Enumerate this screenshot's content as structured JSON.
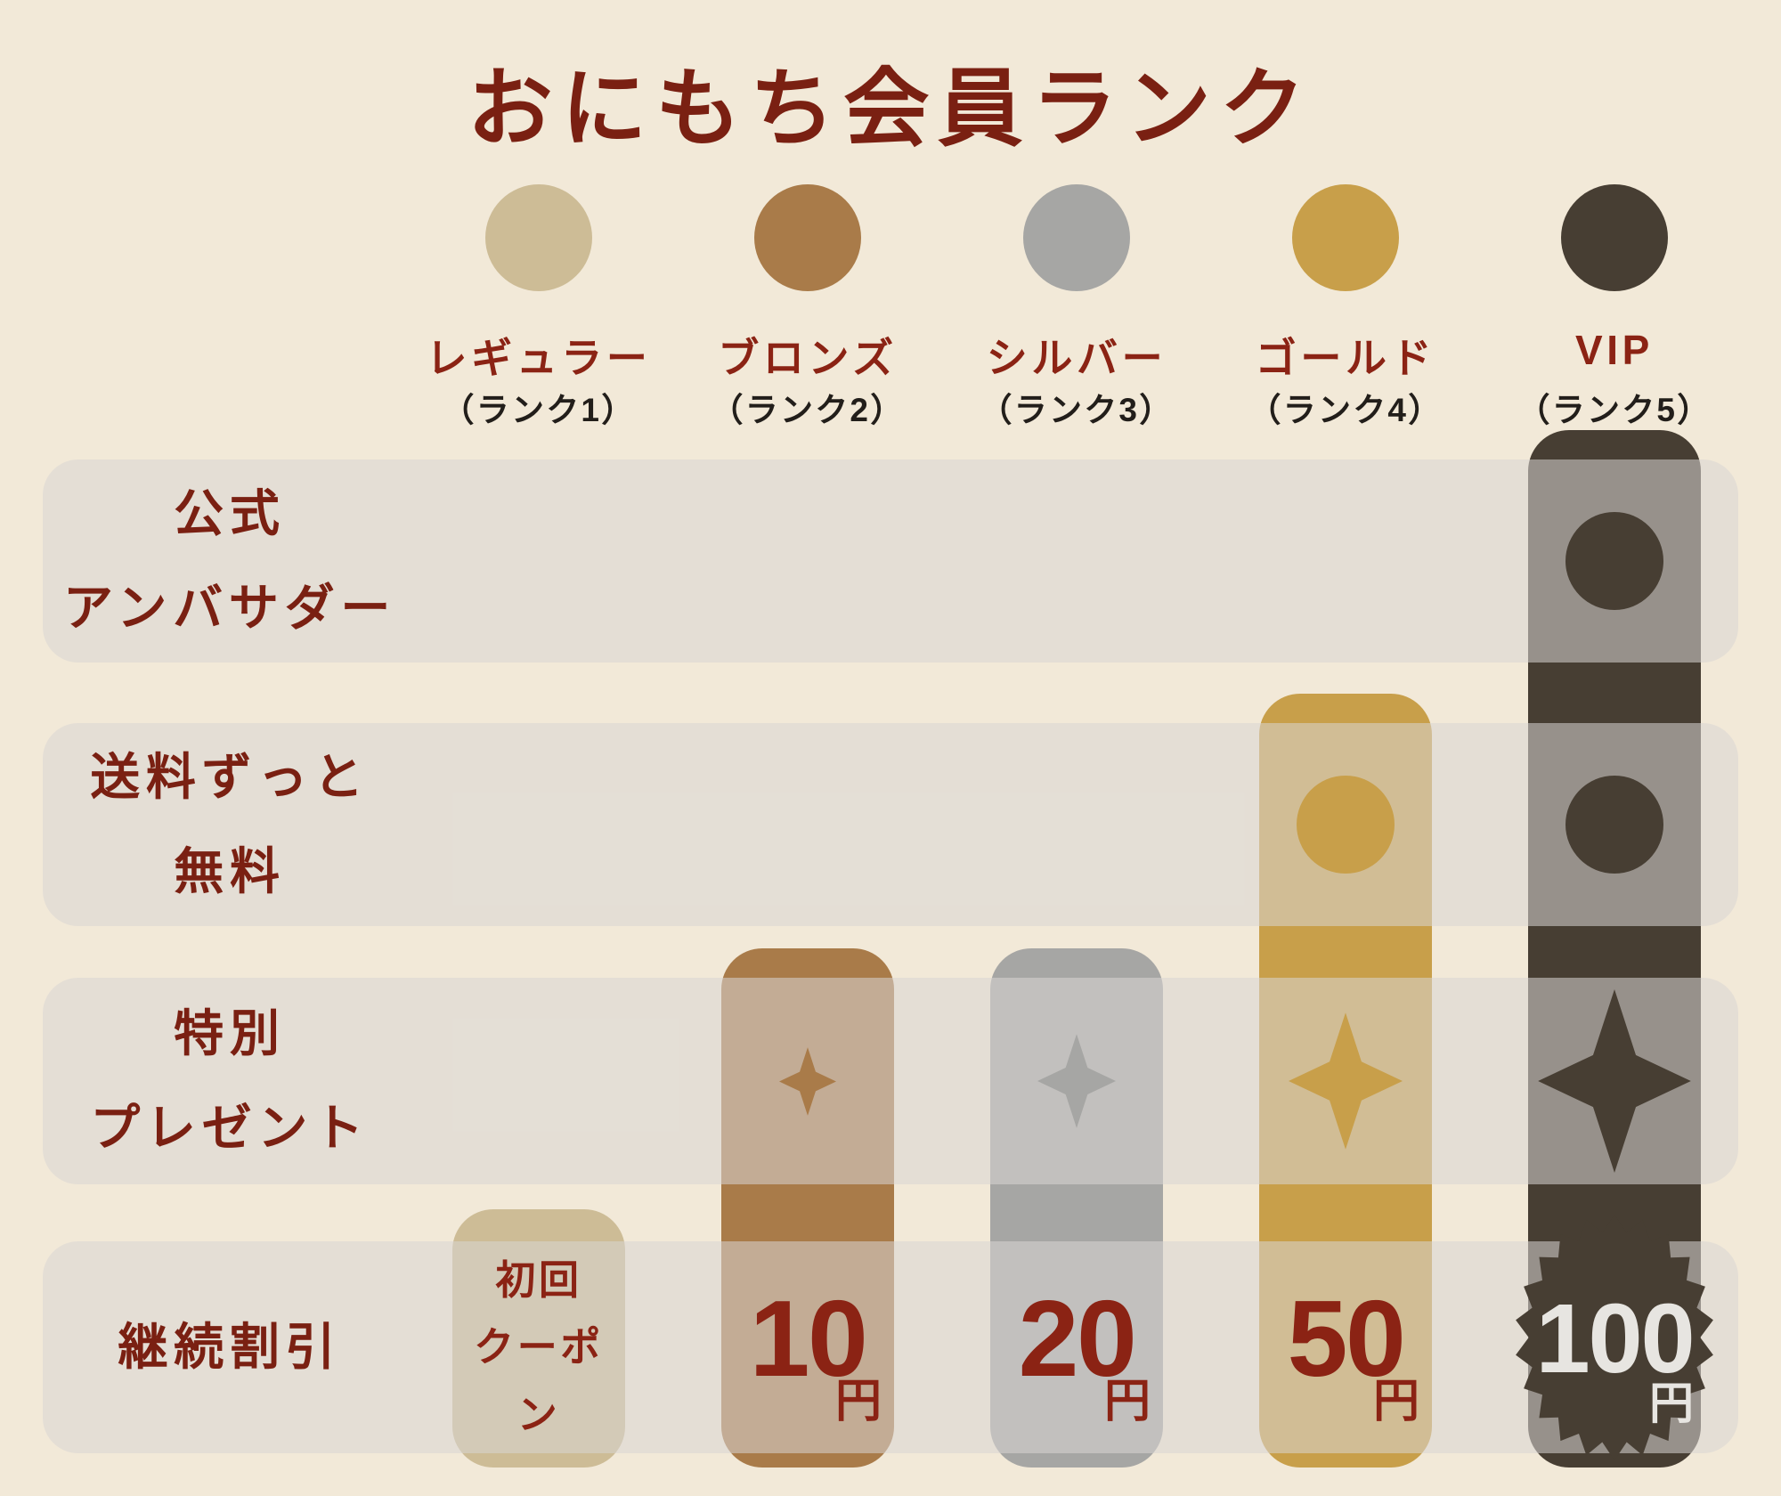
{
  "title": "おにもち会員ランク",
  "theme": {
    "background": "#f2e9d8",
    "band_overlay": "rgba(217,214,212,0.55)",
    "title_color": "#7a2012",
    "accent_text": "#8b2314",
    "note_text": "#221e1a",
    "light_text": "#e7e5e1"
  },
  "ranks": [
    {
      "name": "レギュラー",
      "note": "（ランク1）",
      "color": "#cdbc96",
      "discount": {
        "type": "text",
        "lines": [
          "初回",
          "クーポン"
        ]
      }
    },
    {
      "name": "ブロンズ",
      "note": "（ランク2）",
      "color": "#a97b49",
      "discount": {
        "type": "price",
        "amount": "10",
        "unit": "円"
      }
    },
    {
      "name": "シルバー",
      "note": "（ランク3）",
      "color": "#a6a6a4",
      "discount": {
        "type": "price",
        "amount": "20",
        "unit": "円"
      }
    },
    {
      "name": "ゴールド",
      "note": "（ランク4）",
      "color": "#c89f4a",
      "discount": {
        "type": "price",
        "amount": "50",
        "unit": "円"
      }
    },
    {
      "name": "VIP",
      "note": "（ランク5）",
      "color": "#473e33",
      "discount": {
        "type": "price",
        "amount": "100",
        "unit": "円"
      }
    }
  ],
  "rows": [
    {
      "label_lines": [
        "公式",
        "アンバサダー"
      ]
    },
    {
      "label_lines": [
        "送料ずっと",
        "無料"
      ]
    },
    {
      "label_lines": [
        "特別",
        "プレゼント"
      ]
    },
    {
      "label_lines": [
        "継続割引",
        ""
      ]
    }
  ],
  "benefit_matrix": {
    "ambassador": [
      false,
      false,
      false,
      false,
      true
    ],
    "free_shipping": [
      false,
      false,
      false,
      true,
      true
    ],
    "special_present": [
      false,
      true,
      true,
      true,
      true
    ],
    "loyalty_discount": [
      "初回クーポン",
      "10円",
      "20円",
      "50円",
      "100円"
    ]
  },
  "icons": {
    "rank_badge": "filled-circle-icon",
    "ambassador_marker": "filled-circle-icon",
    "free_shipping_marker": "filled-circle-icon",
    "special_present_marker": "four-point-sparkle-icon",
    "vip_discount_badge": "starburst-seal-icon"
  }
}
